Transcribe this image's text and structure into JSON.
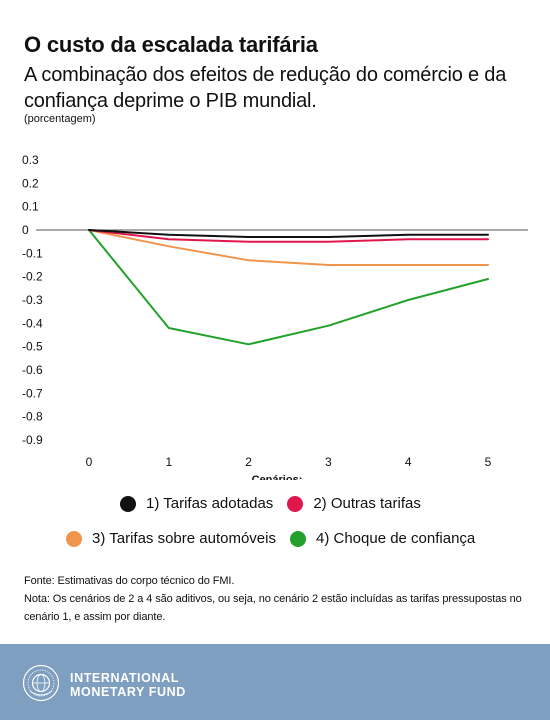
{
  "header": {
    "title": "O custo da escalada tarifária",
    "subtitle": "A combinação dos efeitos de redução do comércio e da confiança deprime o PIB mundial.",
    "unit": "(porcentagem)"
  },
  "chart_data": {
    "type": "line",
    "x": [
      0,
      1,
      2,
      3,
      4,
      5
    ],
    "xlabel": "Cenários:",
    "ylabel": "",
    "ylim": [
      -0.9,
      0.3
    ],
    "yticks": [
      "0.3",
      "0.2",
      "0.1",
      "0",
      "-0.1",
      "-0.2",
      "-0.3",
      "-0.4",
      "-0.5",
      "-0.6",
      "-0.7",
      "-0.8",
      "-0.9"
    ],
    "ytick_values": [
      0.3,
      0.2,
      0.1,
      0,
      -0.1,
      -0.2,
      -0.3,
      -0.4,
      -0.5,
      -0.6,
      -0.7,
      -0.8,
      -0.9
    ],
    "xticks": [
      "0",
      "1",
      "2",
      "3",
      "4",
      "5"
    ],
    "grid": false,
    "legend_position": "bottom",
    "series": [
      {
        "name": "1) Tarifas adotadas",
        "color": "#111111",
        "values": [
          0,
          -0.02,
          -0.03,
          -0.03,
          -0.02,
          -0.02
        ]
      },
      {
        "name": "2) Outras tarifas",
        "color": "#e0174c",
        "values": [
          0,
          -0.04,
          -0.05,
          -0.05,
          -0.04,
          -0.04
        ]
      },
      {
        "name": "3) Tarifas sobre automóveis",
        "color": "#f0954c",
        "values": [
          0,
          -0.07,
          -0.13,
          -0.15,
          -0.15,
          -0.15
        ]
      },
      {
        "name": "4) Choque de confiança",
        "color": "#22a22a",
        "values": [
          0,
          -0.42,
          -0.49,
          -0.41,
          -0.3,
          -0.21
        ]
      }
    ]
  },
  "notes": {
    "source": "Fonte: Estimativas do corpo técnico do FMI.",
    "note": "Nota: Os cenários de 2 a 4 são aditivos, ou seja, no cenário 2 estão incluídas as tarifas pressupostas no cenário 1, e assim por diante."
  },
  "footer": {
    "logo_line1": "INTERNATIONAL",
    "logo_line2": "MONETARY FUND",
    "logo_icon": "imf-seal-icon"
  }
}
